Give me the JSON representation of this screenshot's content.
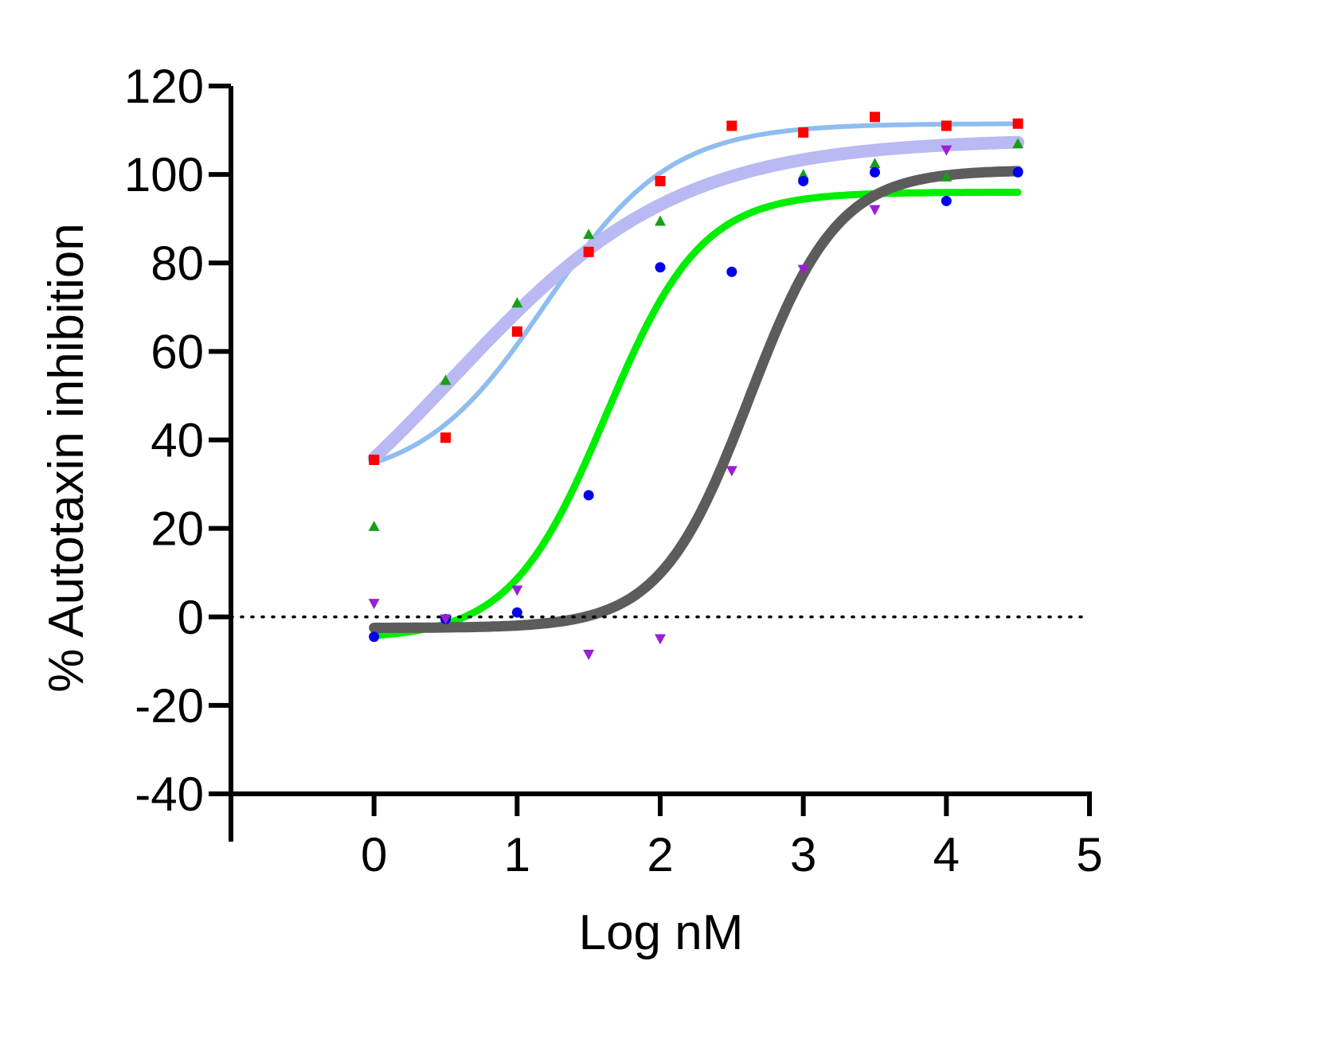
{
  "chart_data": {
    "type": "scatter",
    "title": "",
    "xlabel": "Log nM",
    "ylabel": "% Autotaxin inhibition",
    "xlim": [
      -1,
      5
    ],
    "ylim": [
      -40,
      120
    ],
    "xticks": [
      0,
      1,
      2,
      3,
      4,
      5
    ],
    "yticks": [
      -40,
      -20,
      0,
      20,
      40,
      60,
      80,
      100,
      120
    ],
    "x_tick_labels": [
      "0",
      "1",
      "2",
      "3",
      "4",
      "5"
    ],
    "y_tick_labels": [
      "-40",
      "-20",
      "0",
      "20",
      "40",
      "60",
      "80",
      "100",
      "120"
    ],
    "reference_line": {
      "y": 0,
      "style": "dotted"
    },
    "grid": false,
    "legend": "none",
    "x": [
      0,
      0.5,
      1,
      1.5,
      2,
      2.5,
      3,
      3.5,
      4,
      4.5
    ],
    "series": [
      {
        "marker": "square",
        "color": "#ff0000",
        "curve_color": "#8fbdf0",
        "values": [
          35.5,
          40.5,
          64.5,
          82.5,
          98.5,
          111,
          109.5,
          113,
          111,
          111.5
        ],
        "fit": {
          "bottom": 30,
          "top": 111.5,
          "logec50": 1.2,
          "hill": 1.0,
          "width": 6
        }
      },
      {
        "marker": "triangle-up",
        "color": "#1a9e1a",
        "curve_color": "#b9b9f3",
        "values": [
          20.5,
          53.5,
          71,
          86.5,
          89.5,
          null,
          100,
          102.5,
          99.5,
          107
        ],
        "fit": {
          "bottom": 0,
          "top": 108,
          "logec50": 0.55,
          "hill": 0.55,
          "width": 16
        }
      },
      {
        "marker": "circle",
        "color": "#0000ee",
        "curve_color": "#00ee00",
        "values": [
          -4.5,
          -0.5,
          1,
          27.5,
          79,
          78,
          98.5,
          100.5,
          94,
          100.5
        ],
        "fit": {
          "bottom": -5,
          "top": 96,
          "logec50": 1.62,
          "hill": 1.3,
          "width": 9
        }
      },
      {
        "marker": "triangle-down",
        "color": "#9b1fd6",
        "curve_color": "#5c5c5c",
        "values": [
          3,
          -0.5,
          6,
          -8.5,
          -5,
          33,
          78.5,
          92,
          105.5,
          null
        ],
        "fit": {
          "bottom": -2.5,
          "top": 101,
          "logec50": 2.62,
          "hill": 1.4,
          "width": 13
        }
      }
    ]
  }
}
